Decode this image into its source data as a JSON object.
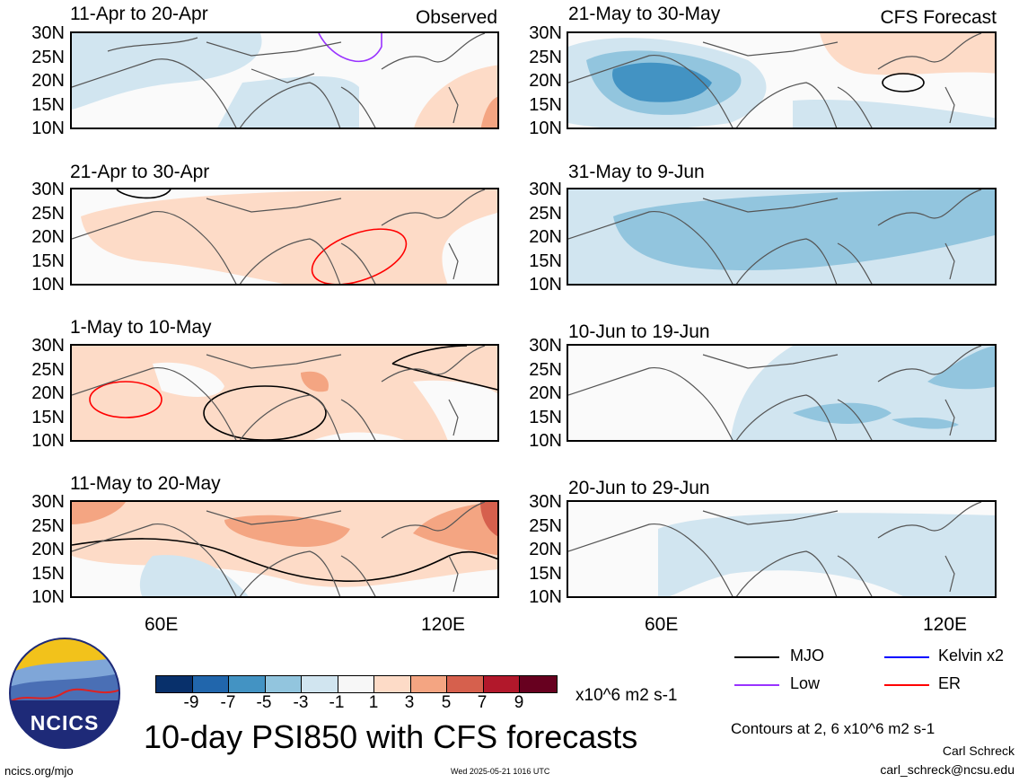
{
  "panels": [
    {
      "id": "obs1",
      "title": "11-Apr to 20-Apr",
      "corner": "Observed"
    },
    {
      "id": "obs2",
      "title": "21-Apr to 30-Apr",
      "corner": ""
    },
    {
      "id": "obs3",
      "title": "1-May to 10-May",
      "corner": ""
    },
    {
      "id": "obs4",
      "title": "11-May to 20-May",
      "corner": ""
    },
    {
      "id": "fc1",
      "title": "21-May to 30-May",
      "corner": "CFS Forecast"
    },
    {
      "id": "fc2",
      "title": "31-May to 9-Jun",
      "corner": ""
    },
    {
      "id": "fc3",
      "title": "10-Jun to 19-Jun",
      "corner": ""
    },
    {
      "id": "fc4",
      "title": "20-Jun to 29-Jun",
      "corner": ""
    }
  ],
  "lat_labels": [
    "30N",
    "25N",
    "20N",
    "15N",
    "10N"
  ],
  "lon_labels": [
    "60E",
    "120E"
  ],
  "colorbar": {
    "colors": [
      "#08306b",
      "#2166ac",
      "#4393c3",
      "#92c5de",
      "#d1e5f0",
      "#f7f7f7",
      "#fddbc7",
      "#f4a582",
      "#d6604d",
      "#b2182b",
      "#67001f"
    ],
    "ticks": [
      "-9",
      "-7",
      "-5",
      "-3",
      "-1",
      "1",
      "3",
      "5",
      "7",
      "9"
    ],
    "units": "x10^6 m2 s-1"
  },
  "legend": [
    {
      "label": "MJO",
      "color": "#000000"
    },
    {
      "label": "Kelvin x2",
      "color": "#0000ff"
    },
    {
      "label": "Low",
      "color": "#9933ff"
    },
    {
      "label": "ER",
      "color": "#ff0000"
    }
  ],
  "main_title": "10-day PSI850 with CFS forecasts",
  "contours_note": "Contours at 2, 6 x10^6 m2 s-1",
  "author": "Carl Schreck",
  "email": "carl_schreck@ncsu.edu",
  "site": "ncics.org/mjo",
  "timestamp": "Wed 2025-05-21 1016 UTC",
  "logo_text": "NCICS"
}
